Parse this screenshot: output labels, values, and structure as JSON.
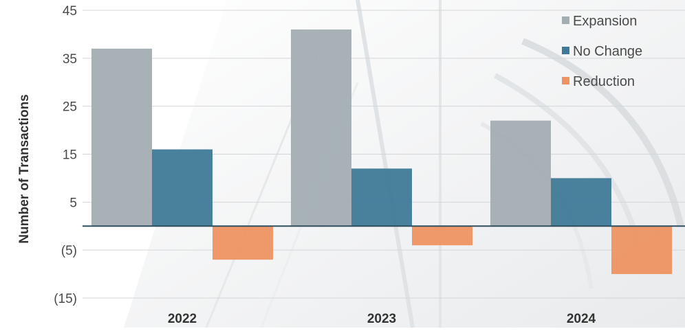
{
  "chart_data": {
    "type": "bar",
    "title": "",
    "xlabel": "",
    "ylabel": "Number of Transactions",
    "categories": [
      "2022",
      "2023",
      "2024"
    ],
    "series": [
      {
        "name": "Expansion",
        "values": [
          37,
          41,
          22
        ],
        "color": "#a3aeb2"
      },
      {
        "name": "No Change",
        "values": [
          16,
          12,
          10
        ],
        "color": "#3f7a98"
      },
      {
        "name": "Reduction",
        "values": [
          -7,
          -4,
          -10
        ],
        "color": "#ee9462"
      }
    ],
    "ylim": [
      -15,
      45
    ],
    "yticks": [
      45,
      35,
      25,
      15,
      5,
      -5,
      -15
    ],
    "ytick_labels": [
      "45",
      "35",
      "25",
      "15",
      "5",
      "(5)",
      "(15)"
    ],
    "grid": true,
    "legend_position": "top-right"
  }
}
